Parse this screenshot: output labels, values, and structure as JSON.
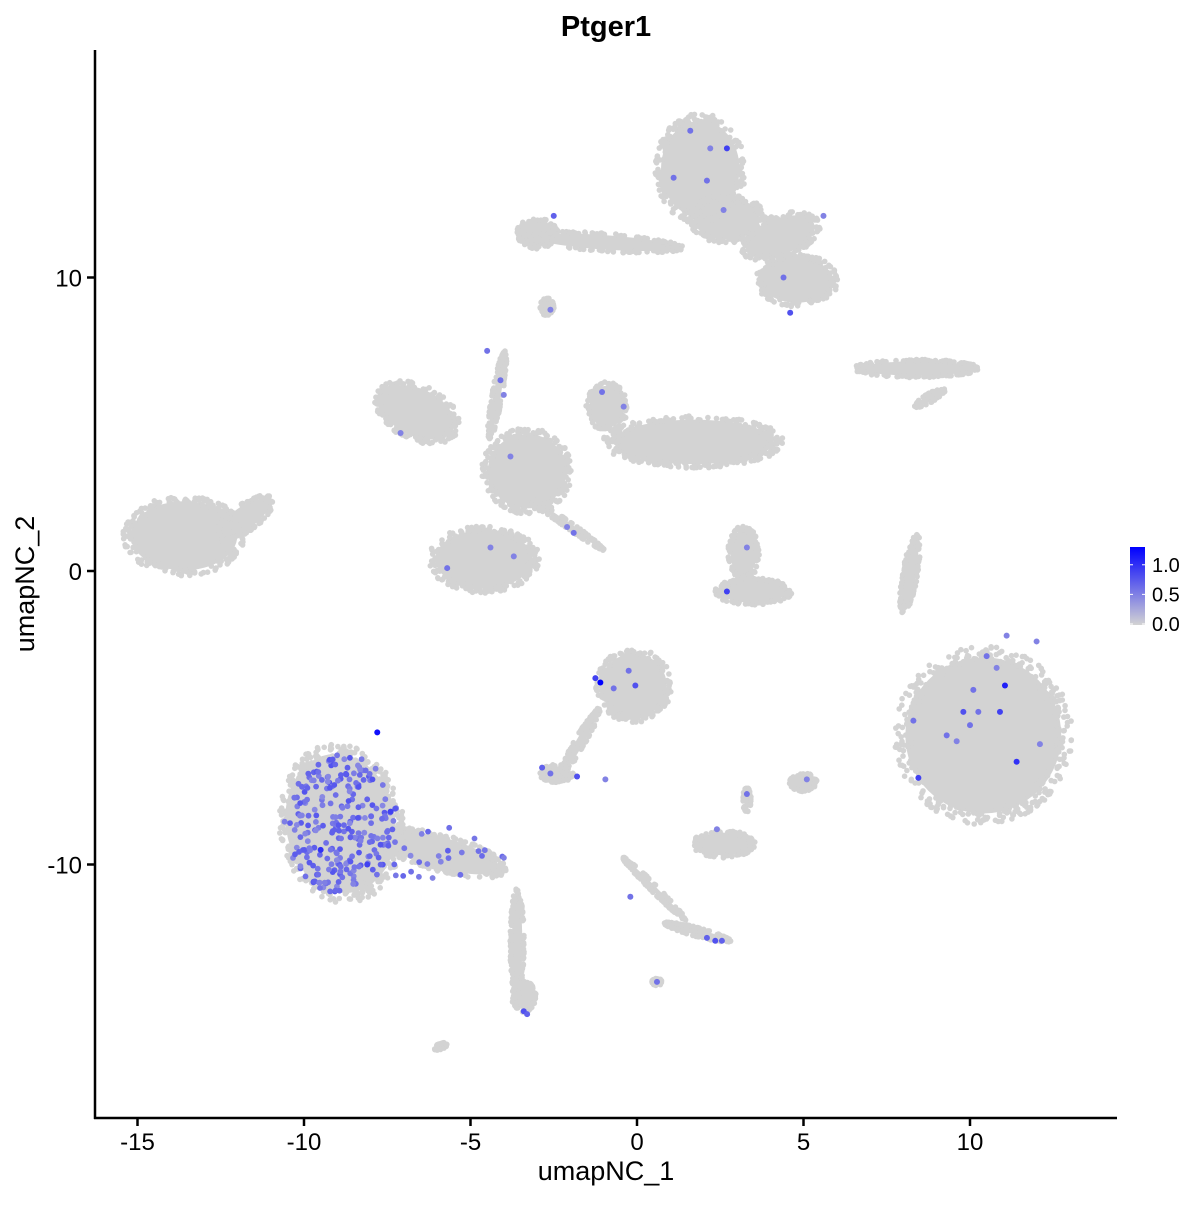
{
  "chart_data": {
    "type": "scatter",
    "title": "Ptger1",
    "xlabel": "umapNC_1",
    "ylabel": "umapNC_2",
    "xlim": [
      -16.5,
      14.5
    ],
    "ylim": [
      -18.3,
      17.7
    ],
    "xticks": [
      -15,
      -10,
      -5,
      0,
      5,
      10
    ],
    "xtick_labels": [
      "-15",
      "-10",
      "-5",
      "0",
      "5",
      "10"
    ],
    "yticks": [
      -10,
      0,
      10
    ],
    "ytick_labels": [
      "-10",
      "0",
      "10"
    ],
    "grid": false,
    "legend": {
      "placement": "right",
      "type": "colorbar",
      "range": [
        0,
        1.3
      ],
      "ticks": [
        0,
        0.5,
        1.0
      ],
      "tick_labels": [
        "0.0",
        "0.5",
        "1.0"
      ],
      "low_color": "#d3d3d3",
      "high_color": "#0000ff"
    },
    "clusters": [
      {
        "cx": 1.9,
        "cy": 13.7,
        "rx": 1.3,
        "ry": 1.8,
        "rot": 0
      },
      {
        "cx": 2.7,
        "cy": 12.0,
        "rx": 1.1,
        "ry": 0.8,
        "rot": 0
      },
      {
        "cx": -1.0,
        "cy": 11.2,
        "rx": 2.3,
        "ry": 0.3,
        "rot": -4
      },
      {
        "cx": -3.0,
        "cy": 11.5,
        "rx": 0.6,
        "ry": 0.5,
        "rot": 0
      },
      {
        "cx": 4.8,
        "cy": 9.9,
        "rx": 1.2,
        "ry": 0.85,
        "rot": 0
      },
      {
        "cx": 4.3,
        "cy": 11.4,
        "rx": 1.2,
        "ry": 0.7,
        "rot": 20
      },
      {
        "cx": 8.4,
        "cy": 6.9,
        "rx": 1.8,
        "ry": 0.3,
        "rot": 0
      },
      {
        "cx": 8.8,
        "cy": 5.9,
        "rx": 0.5,
        "ry": 0.15,
        "rot": 30
      },
      {
        "cx": -13.6,
        "cy": 1.2,
        "rx": 1.75,
        "ry": 1.3,
        "rot": 0
      },
      {
        "cx": -11.8,
        "cy": 1.8,
        "rx": 1.0,
        "ry": 0.45,
        "rot": 35
      },
      {
        "cx": -6.6,
        "cy": 5.4,
        "rx": 1.3,
        "ry": 0.9,
        "rot": -25
      },
      {
        "cx": -3.3,
        "cy": 3.4,
        "rx": 1.3,
        "ry": 1.4,
        "rot": 0
      },
      {
        "cx": 1.7,
        "cy": 4.4,
        "rx": 2.6,
        "ry": 0.85,
        "rot": 0
      },
      {
        "cx": -0.9,
        "cy": 5.6,
        "rx": 0.6,
        "ry": 0.8,
        "rot": 0
      },
      {
        "cx": -4.6,
        "cy": 0.4,
        "rx": 1.6,
        "ry": 1.1,
        "rot": 0
      },
      {
        "cx": -4.2,
        "cy": 6.0,
        "rx": 0.15,
        "ry": 1.5,
        "rot": -10
      },
      {
        "cx": -2.1,
        "cy": 1.6,
        "rx": 1.3,
        "ry": 0.12,
        "rot": -35
      },
      {
        "cx": 3.5,
        "cy": -0.7,
        "rx": 1.1,
        "ry": 0.45,
        "rot": 0
      },
      {
        "cx": 3.2,
        "cy": 0.6,
        "rx": 0.45,
        "ry": 0.9,
        "rot": 0
      },
      {
        "cx": 8.2,
        "cy": -0.1,
        "rx": 0.22,
        "ry": 1.3,
        "rot": -10
      },
      {
        "cx": 10.4,
        "cy": -5.6,
        "rx": 2.55,
        "ry": 2.9,
        "rot": 0
      },
      {
        "cx": -0.1,
        "cy": -3.9,
        "rx": 1.1,
        "ry": 1.2,
        "rot": 0
      },
      {
        "cx": -1.7,
        "cy": -5.8,
        "rx": 1.1,
        "ry": 0.18,
        "rot": 60
      },
      {
        "cx": -2.4,
        "cy": -6.9,
        "rx": 0.5,
        "ry": 0.3,
        "rot": 0
      },
      {
        "cx": -8.9,
        "cy": -8.6,
        "rx": 1.8,
        "ry": 2.6,
        "rot": 10
      },
      {
        "cx": -5.9,
        "cy": -9.6,
        "rx": 2.0,
        "ry": 0.6,
        "rot": -15
      },
      {
        "cx": -3.6,
        "cy": -12.7,
        "rx": 0.2,
        "ry": 1.8,
        "rot": 0
      },
      {
        "cx": -3.4,
        "cy": -14.5,
        "rx": 0.35,
        "ry": 0.5,
        "rot": 0
      },
      {
        "cx": 2.6,
        "cy": -9.3,
        "rx": 0.9,
        "ry": 0.45,
        "rot": 0
      },
      {
        "cx": 0.5,
        "cy": -10.8,
        "rx": 1.3,
        "ry": 0.12,
        "rot": -45
      },
      {
        "cx": 1.8,
        "cy": -12.3,
        "rx": 1.0,
        "ry": 0.15,
        "rot": -15
      },
      {
        "cx": 5.0,
        "cy": -7.2,
        "rx": 0.4,
        "ry": 0.3,
        "rot": 0
      },
      {
        "cx": 3.3,
        "cy": -7.8,
        "rx": 0.12,
        "ry": 0.4,
        "rot": 0
      },
      {
        "cx": -2.7,
        "cy": 9.0,
        "rx": 0.2,
        "ry": 0.3,
        "rot": 0
      },
      {
        "cx": 0.6,
        "cy": -14.0,
        "rx": 0.15,
        "ry": 0.12,
        "rot": 0
      },
      {
        "cx": -5.9,
        "cy": -16.2,
        "rx": 0.2,
        "ry": 0.1,
        "rot": 20
      }
    ],
    "expressing_cells_lower_left_cluster": 250,
    "expressing_cells": [
      [
        1.6,
        15.0,
        0.6
      ],
      [
        1.1,
        13.4,
        0.6
      ],
      [
        2.1,
        13.3,
        0.6
      ],
      [
        2.7,
        14.4,
        0.9
      ],
      [
        2.2,
        14.4,
        0.5
      ],
      [
        2.6,
        12.3,
        0.5
      ],
      [
        -2.5,
        12.1,
        0.7
      ],
      [
        5.6,
        12.1,
        0.5
      ],
      [
        4.4,
        10.0,
        0.6
      ],
      [
        4.6,
        8.8,
        0.8
      ],
      [
        -2.6,
        8.9,
        0.5
      ],
      [
        -4.5,
        7.5,
        0.6
      ],
      [
        -4.1,
        6.5,
        0.6
      ],
      [
        -4.0,
        6.0,
        0.5
      ],
      [
        -1.05,
        6.1,
        0.6
      ],
      [
        -0.4,
        5.6,
        0.5
      ],
      [
        -7.1,
        4.7,
        0.5
      ],
      [
        -3.8,
        3.9,
        0.5
      ],
      [
        -4.4,
        0.8,
        0.5
      ],
      [
        -5.7,
        0.1,
        0.6
      ],
      [
        -3.7,
        0.5,
        0.5
      ],
      [
        -2.1,
        1.5,
        0.5
      ],
      [
        -1.9,
        1.3,
        0.6
      ],
      [
        3.3,
        0.8,
        0.5
      ],
      [
        2.7,
        -0.7,
        0.9
      ],
      [
        -1.1,
        -3.8,
        1.3
      ],
      [
        -1.25,
        -3.65,
        0.9
      ],
      [
        -0.7,
        -4.0,
        0.6
      ],
      [
        -0.25,
        -3.4,
        0.6
      ],
      [
        -0.05,
        -3.9,
        0.8
      ],
      [
        -2.85,
        -6.7,
        0.7
      ],
      [
        -2.6,
        -6.9,
        0.6
      ],
      [
        -1.8,
        -7.0,
        0.8
      ],
      [
        -0.95,
        -7.1,
        0.5
      ],
      [
        3.3,
        -7.6,
        0.6
      ],
      [
        5.1,
        -7.1,
        0.5
      ],
      [
        2.4,
        -8.8,
        0.5
      ],
      [
        -0.2,
        -11.1,
        0.6
      ],
      [
        2.1,
        -12.5,
        0.7
      ],
      [
        2.35,
        -12.6,
        0.8
      ],
      [
        2.55,
        -12.6,
        0.7
      ],
      [
        0.6,
        -14.0,
        0.6
      ],
      [
        -3.4,
        -15.0,
        0.8
      ],
      [
        -3.3,
        -15.1,
        0.7
      ],
      [
        11.1,
        -2.2,
        0.5
      ],
      [
        12.0,
        -2.4,
        0.5
      ],
      [
        10.5,
        -2.9,
        0.6
      ],
      [
        10.8,
        -3.3,
        0.5
      ],
      [
        11.05,
        -3.9,
        1.1
      ],
      [
        10.1,
        -4.05,
        0.6
      ],
      [
        9.8,
        -4.8,
        0.8
      ],
      [
        10.25,
        -4.8,
        0.6
      ],
      [
        10.9,
        -4.8,
        0.9
      ],
      [
        8.3,
        -5.1,
        0.6
      ],
      [
        10.0,
        -5.25,
        0.6
      ],
      [
        9.6,
        -5.8,
        0.5
      ],
      [
        11.4,
        -6.5,
        1.0
      ],
      [
        8.45,
        -7.05,
        0.9
      ],
      [
        12.1,
        -5.9,
        0.5
      ],
      [
        9.3,
        -5.6,
        0.6
      ],
      [
        -7.8,
        -5.5,
        1.2
      ],
      [
        -8.1,
        -10.0,
        0.9
      ],
      [
        -9.5,
        -9.5,
        1.0
      ],
      [
        -7.4,
        -8.2,
        0.9
      ]
    ]
  }
}
